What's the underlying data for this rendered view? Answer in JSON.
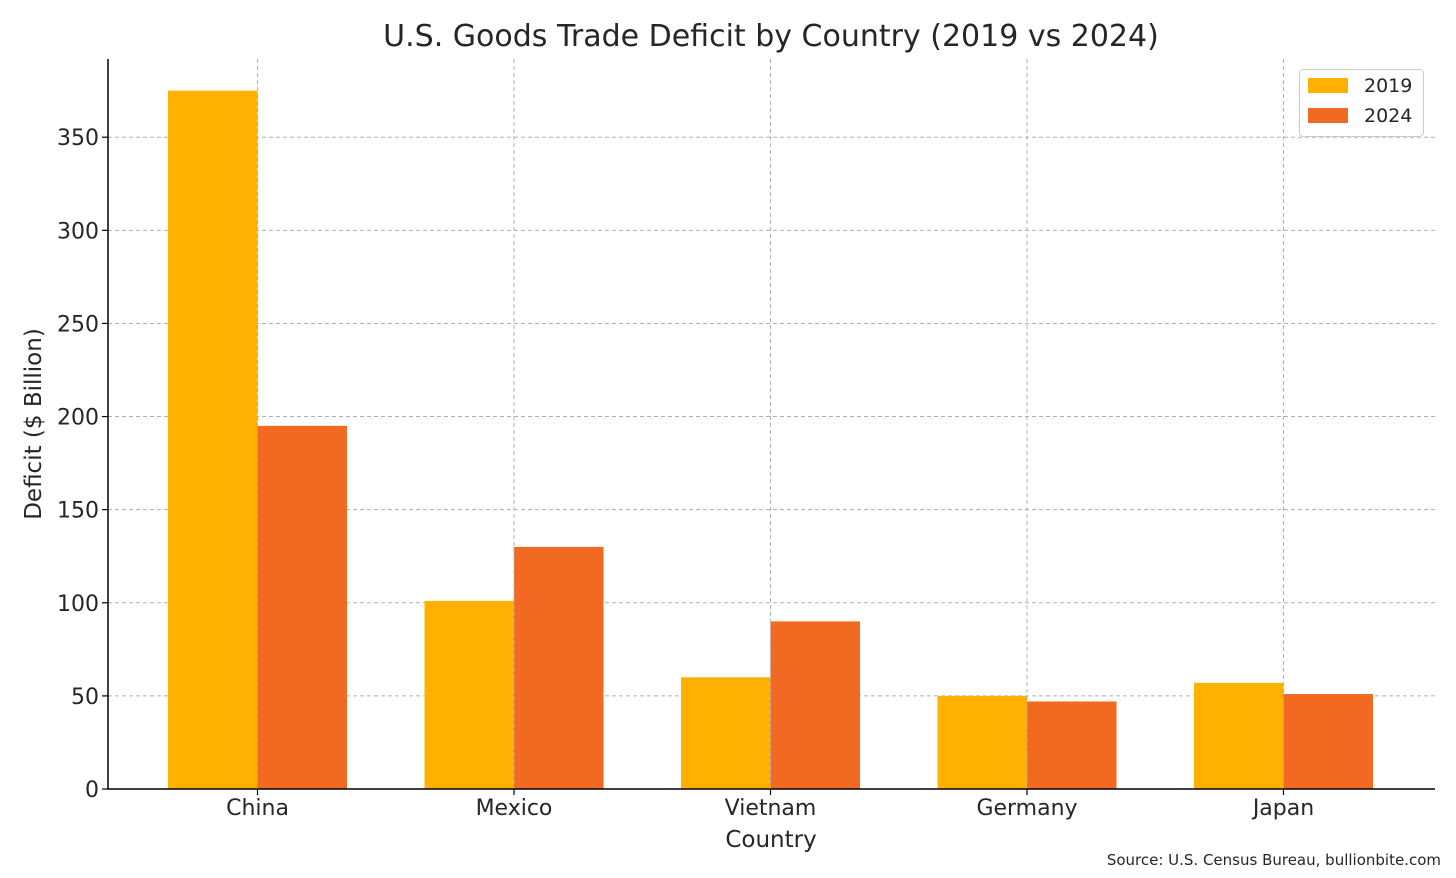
{
  "chart_data": {
    "type": "bar",
    "title": "U.S. Goods Trade Deficit by Country (2019 vs 2024)",
    "xlabel": "Country",
    "ylabel": "Deficit ($ Billion)",
    "categories": [
      "China",
      "Mexico",
      "Vietnam",
      "Germany",
      "Japan"
    ],
    "series": [
      {
        "name": "2019",
        "color": "#FFB000",
        "values": [
          375,
          101,
          60,
          50,
          57
        ]
      },
      {
        "name": "2024",
        "color": "#F26A21",
        "values": [
          195,
          130,
          90,
          47,
          51
        ]
      }
    ],
    "ylim": [
      0,
      392
    ],
    "yticks": [
      0,
      50,
      100,
      150,
      200,
      250,
      300,
      350
    ],
    "grid": true,
    "legend_position": "top-right",
    "source_note": "Source: U.S. Census Bureau, bullionbite.com"
  }
}
